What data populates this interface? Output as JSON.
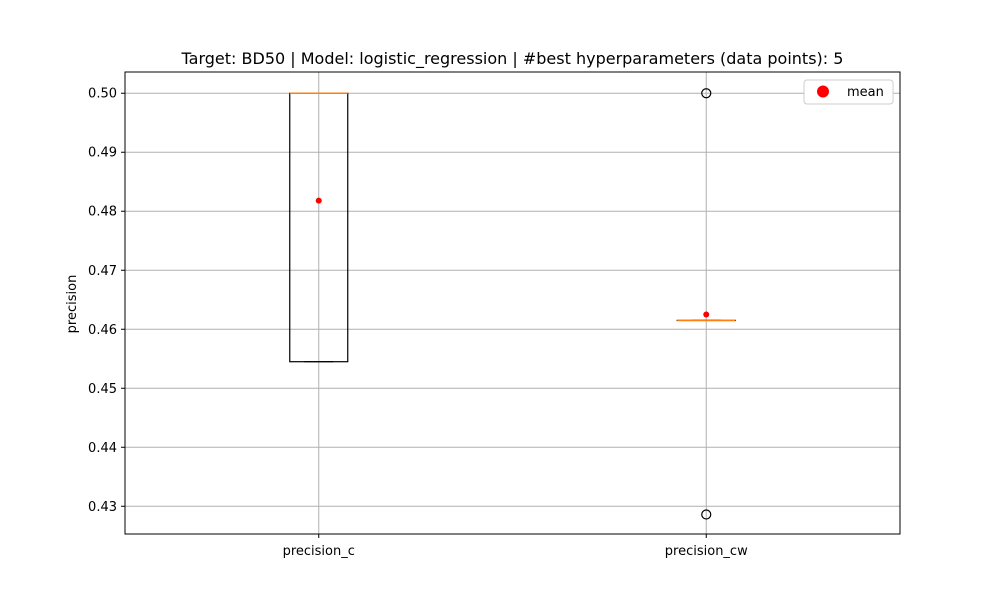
{
  "chart_data": {
    "type": "box",
    "title": "Target: BD50 | Model: logistic_regression | #best hyperparameters (data points): 5",
    "xlabel": "",
    "ylabel": "precision",
    "ylim": [
      0.4253,
      0.5036
    ],
    "yticks": [
      "0.43",
      "0.44",
      "0.45",
      "0.46",
      "0.47",
      "0.48",
      "0.49",
      "0.50"
    ],
    "ytick_values": [
      0.43,
      0.44,
      0.45,
      0.46,
      0.47,
      0.48,
      0.49,
      0.5
    ],
    "grid": true,
    "legend": {
      "position": "top-right",
      "entries": [
        {
          "label": "mean",
          "color": "#ff0000",
          "marker": "circle"
        }
      ]
    },
    "categories": [
      "precision_c",
      "precision_cw"
    ],
    "boxes": [
      {
        "name": "precision_c",
        "whisker_low": 0.4545,
        "q1": 0.4545,
        "median": 0.5,
        "q3": 0.5,
        "whisker_high": 0.5,
        "mean": 0.4818,
        "outliers": []
      },
      {
        "name": "precision_cw",
        "whisker_low": 0.4615,
        "q1": 0.4615,
        "median": 0.4615,
        "q3": 0.4615,
        "whisker_high": 0.4615,
        "mean": 0.4625,
        "outliers": [
          0.5,
          0.4286
        ]
      }
    ],
    "colors": {
      "box": "#000000",
      "median": "#ff7f0e",
      "mean": "#ff0000",
      "grid": "#b0b0b0"
    }
  }
}
